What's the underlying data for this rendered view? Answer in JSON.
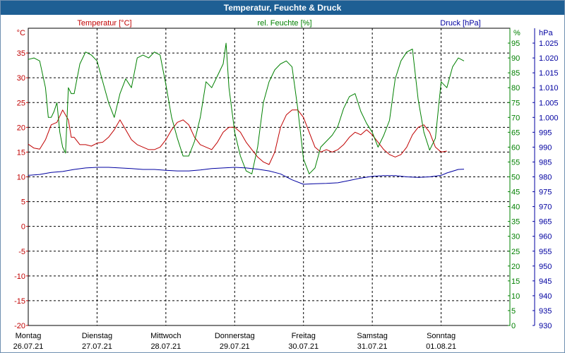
{
  "window": {
    "title": "Temperatur, Feuchte & Druck"
  },
  "colors": {
    "temperature": "#c00000",
    "humidity": "#008000",
    "pressure": "#0000a0",
    "title_bar": "#1e5f94"
  },
  "chart_data": {
    "type": "line",
    "title": "Temperatur, Feuchte & Druck",
    "grid": true,
    "x_range": [
      0,
      168
    ],
    "x_unit": "hours",
    "day_labels": [
      {
        "day": "Montag",
        "date": "26.07.21"
      },
      {
        "day": "Dienstag",
        "date": "27.07.21"
      },
      {
        "day": "Mittwoch",
        "date": "28.07.21"
      },
      {
        "day": "Donnerstag",
        "date": "29.07.21"
      },
      {
        "day": "Freitag",
        "date": "30.07.21"
      },
      {
        "day": "Samstag",
        "date": "31.07.21"
      },
      {
        "day": "Sonntag",
        "date": "01.08.21"
      }
    ],
    "axes": {
      "temperature": {
        "label": "Temperatur [°C]",
        "unit": "°C",
        "range": [
          -20,
          40
        ],
        "ticks": [
          "-20",
          "-15",
          "-10",
          "-5",
          "0",
          "5",
          "10",
          "15",
          "20",
          "25",
          "30",
          "35"
        ]
      },
      "humidity": {
        "label": "rel. Feuchte [%]",
        "unit": "%",
        "range": [
          0,
          100
        ],
        "ticks": [
          "0",
          "5",
          "10",
          "15",
          "20",
          "25",
          "30",
          "35",
          "40",
          "45",
          "50",
          "55",
          "60",
          "65",
          "70",
          "75",
          "80",
          "85",
          "90",
          "95"
        ]
      },
      "pressure": {
        "label": "Druck [hPa]",
        "unit": "hPa",
        "range": [
          930,
          1030
        ],
        "ticks": [
          "930",
          "935",
          "940",
          "945",
          "950",
          "955",
          "960",
          "965",
          "970",
          "975",
          "980",
          "985",
          "990",
          "995",
          "1.000",
          "1.005",
          "1.010",
          "1.015",
          "1.020",
          "1.025"
        ]
      }
    },
    "series": [
      {
        "name": "Temperatur [°C]",
        "axis": "temperature",
        "points": [
          [
            0,
            16.6
          ],
          [
            2,
            15.8
          ],
          [
            4,
            15.6
          ],
          [
            6,
            17.5
          ],
          [
            8,
            20.5
          ],
          [
            10,
            21
          ],
          [
            12,
            23.5
          ],
          [
            14,
            21.5
          ],
          [
            15,
            18
          ],
          [
            16,
            18
          ],
          [
            18,
            16.5
          ],
          [
            20,
            16.5
          ],
          [
            22,
            16.2
          ],
          [
            24,
            16.8
          ],
          [
            26,
            17
          ],
          [
            28,
            18
          ],
          [
            30,
            19.5
          ],
          [
            32,
            21.5
          ],
          [
            34,
            19.5
          ],
          [
            36,
            17.5
          ],
          [
            38,
            16.5
          ],
          [
            40,
            16
          ],
          [
            42,
            15.5
          ],
          [
            44,
            15.5
          ],
          [
            46,
            16
          ],
          [
            48,
            17.5
          ],
          [
            50,
            19.5
          ],
          [
            52,
            21
          ],
          [
            54,
            21.5
          ],
          [
            56,
            20.5
          ],
          [
            58,
            18
          ],
          [
            60,
            16.5
          ],
          [
            62,
            16
          ],
          [
            64,
            15.5
          ],
          [
            66,
            17
          ],
          [
            68,
            19
          ],
          [
            70,
            20
          ],
          [
            72,
            20
          ],
          [
            74,
            19
          ],
          [
            76,
            17
          ],
          [
            78,
            15.5
          ],
          [
            80,
            14
          ],
          [
            82,
            13
          ],
          [
            84,
            12.5
          ],
          [
            86,
            15
          ],
          [
            88,
            20
          ],
          [
            90,
            22.5
          ],
          [
            92,
            23.5
          ],
          [
            94,
            23.5
          ],
          [
            96,
            22
          ],
          [
            98,
            19
          ],
          [
            100,
            16
          ],
          [
            102,
            15
          ],
          [
            104,
            15.5
          ],
          [
            106,
            15
          ],
          [
            108,
            15.5
          ],
          [
            110,
            16.5
          ],
          [
            112,
            18
          ],
          [
            114,
            19
          ],
          [
            116,
            18.5
          ],
          [
            118,
            19.5
          ],
          [
            120,
            18.5
          ],
          [
            122,
            17
          ],
          [
            124,
            15.5
          ],
          [
            126,
            14.5
          ],
          [
            128,
            14
          ],
          [
            130,
            14.5
          ],
          [
            132,
            16
          ],
          [
            134,
            18.5
          ],
          [
            136,
            20
          ],
          [
            138,
            20.5
          ],
          [
            140,
            19
          ],
          [
            142,
            16
          ],
          [
            144,
            15
          ],
          [
            146,
            15.2
          ]
        ]
      },
      {
        "name": "rel. Feuchte [%]",
        "axis": "humidity",
        "points": [
          [
            0,
            89.5
          ],
          [
            2,
            90
          ],
          [
            4,
            89
          ],
          [
            6,
            80
          ],
          [
            7,
            70
          ],
          [
            8,
            70
          ],
          [
            9,
            72
          ],
          [
            10,
            75
          ],
          [
            11,
            65
          ],
          [
            12,
            60
          ],
          [
            13,
            58
          ],
          [
            14,
            80
          ],
          [
            15,
            78
          ],
          [
            16,
            78
          ],
          [
            18,
            88
          ],
          [
            20,
            92
          ],
          [
            22,
            91
          ],
          [
            24,
            89
          ],
          [
            26,
            82
          ],
          [
            28,
            75
          ],
          [
            30,
            70
          ],
          [
            32,
            78
          ],
          [
            34,
            83
          ],
          [
            36,
            80
          ],
          [
            38,
            90
          ],
          [
            40,
            91
          ],
          [
            42,
            90
          ],
          [
            44,
            92
          ],
          [
            46,
            91
          ],
          [
            48,
            81
          ],
          [
            50,
            70
          ],
          [
            52,
            63
          ],
          [
            54,
            57
          ],
          [
            56,
            57
          ],
          [
            58,
            62
          ],
          [
            60,
            70
          ],
          [
            62,
            82
          ],
          [
            64,
            80
          ],
          [
            66,
            84
          ],
          [
            68,
            88
          ],
          [
            69,
            95
          ],
          [
            70,
            80
          ],
          [
            72,
            65
          ],
          [
            74,
            57
          ],
          [
            76,
            52
          ],
          [
            78,
            51
          ],
          [
            80,
            60
          ],
          [
            82,
            75
          ],
          [
            84,
            82
          ],
          [
            86,
            86
          ],
          [
            88,
            88
          ],
          [
            90,
            89
          ],
          [
            92,
            87
          ],
          [
            94,
            73
          ],
          [
            96,
            56
          ],
          [
            98,
            51
          ],
          [
            100,
            53
          ],
          [
            102,
            60
          ],
          [
            104,
            62
          ],
          [
            106,
            64
          ],
          [
            108,
            67
          ],
          [
            110,
            73
          ],
          [
            112,
            77
          ],
          [
            114,
            78
          ],
          [
            116,
            72
          ],
          [
            118,
            68
          ],
          [
            120,
            65
          ],
          [
            122,
            60
          ],
          [
            124,
            64
          ],
          [
            126,
            69
          ],
          [
            128,
            83
          ],
          [
            130,
            89
          ],
          [
            132,
            92
          ],
          [
            134,
            93
          ],
          [
            136,
            76
          ],
          [
            138,
            65
          ],
          [
            140,
            59
          ],
          [
            142,
            63
          ],
          [
            144,
            82
          ],
          [
            146,
            80
          ],
          [
            148,
            87
          ],
          [
            150,
            90
          ],
          [
            152,
            89
          ]
        ]
      },
      {
        "name": "Druck [hPa]",
        "axis": "pressure",
        "points": [
          [
            0,
            980.5
          ],
          [
            4,
            980.8
          ],
          [
            8,
            981.5
          ],
          [
            12,
            981.8
          ],
          [
            16,
            982.5
          ],
          [
            20,
            983
          ],
          [
            24,
            983.2
          ],
          [
            28,
            983.2
          ],
          [
            32,
            983
          ],
          [
            36,
            982.8
          ],
          [
            40,
            982.5
          ],
          [
            44,
            982.5
          ],
          [
            48,
            982.2
          ],
          [
            52,
            982
          ],
          [
            56,
            982
          ],
          [
            60,
            982.3
          ],
          [
            64,
            982.8
          ],
          [
            68,
            983
          ],
          [
            72,
            983.2
          ],
          [
            76,
            983
          ],
          [
            80,
            982.6
          ],
          [
            84,
            982
          ],
          [
            88,
            981
          ],
          [
            92,
            979
          ],
          [
            96,
            977.5
          ],
          [
            100,
            977.7
          ],
          [
            104,
            977.8
          ],
          [
            108,
            978
          ],
          [
            112,
            978.8
          ],
          [
            116,
            979.6
          ],
          [
            120,
            980.2
          ],
          [
            124,
            980.4
          ],
          [
            128,
            980.4
          ],
          [
            132,
            980
          ],
          [
            136,
            979.8
          ],
          [
            140,
            980
          ],
          [
            144,
            980.5
          ],
          [
            146,
            981.3
          ],
          [
            150,
            982.5
          ],
          [
            152,
            982.6
          ]
        ]
      }
    ]
  }
}
